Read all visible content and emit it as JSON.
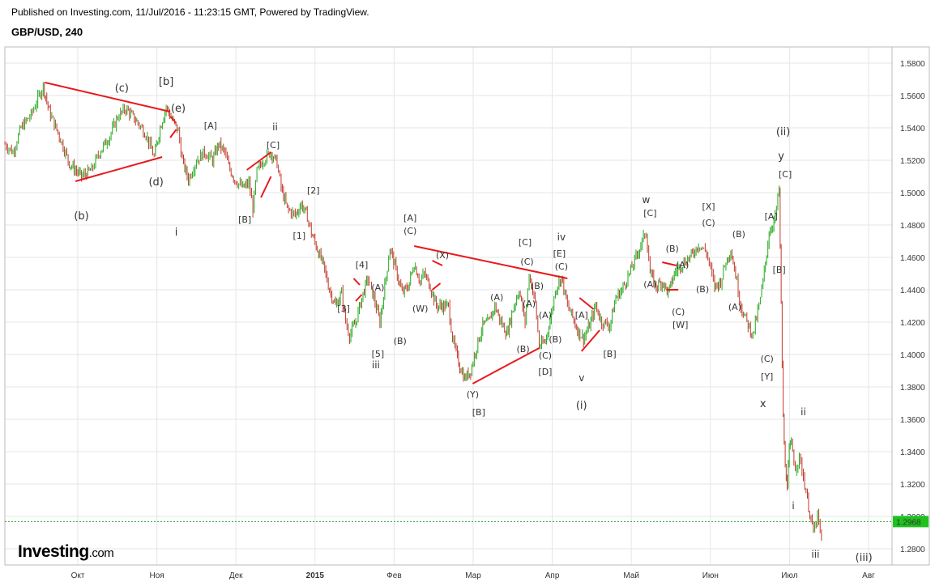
{
  "header": {
    "published": "Published on Investing.com, 11/Jul/2016 - 11:23:15 GMT, Powered by TradingView.",
    "symbol": "GBP/USD, 240"
  },
  "logo": {
    "main": "Investing",
    "suffix": ".com"
  },
  "colors": {
    "up": "#22a81c",
    "down": "#c0392b",
    "trendline": "#e8191c",
    "last_price_bg": "#1ec21e",
    "grid": "#e6e6e6"
  },
  "chart_data": {
    "type": "candlestick",
    "title": "GBP/USD, 240",
    "ylim": [
      1.27,
      1.59
    ],
    "y_ticks": [
      "1.5800",
      "1.5600",
      "1.5400",
      "1.5200",
      "1.5000",
      "1.4800",
      "1.4600",
      "1.4400",
      "1.4200",
      "1.4000",
      "1.3800",
      "1.3600",
      "1.3400",
      "1.3200",
      "1.3000",
      "1.2800"
    ],
    "x_ticks": [
      "Окт",
      "Ноя",
      "Дек",
      "2015",
      "Фев",
      "Мар",
      "Апр",
      "Май",
      "Июн",
      "Июл",
      "Авг"
    ],
    "last_price": "1.2968",
    "price_path": [
      [
        0,
        1.53
      ],
      [
        4,
        1.525
      ],
      [
        8,
        1.54
      ],
      [
        13,
        1.548
      ],
      [
        17,
        1.56
      ],
      [
        19,
        1.566
      ],
      [
        22,
        1.55
      ],
      [
        27,
        1.535
      ],
      [
        32,
        1.518
      ],
      [
        38,
        1.51
      ],
      [
        43,
        1.514
      ],
      [
        47,
        1.525
      ],
      [
        52,
        1.535
      ],
      [
        56,
        1.547
      ],
      [
        60,
        1.552
      ],
      [
        66,
        1.543
      ],
      [
        70,
        1.536
      ],
      [
        74,
        1.522
      ],
      [
        77,
        1.54
      ],
      [
        80,
        1.553
      ],
      [
        83,
        1.545
      ],
      [
        86,
        1.538
      ],
      [
        88,
        1.52
      ],
      [
        91,
        1.508
      ],
      [
        95,
        1.52
      ],
      [
        99,
        1.525
      ],
      [
        103,
        1.52
      ],
      [
        106,
        1.53
      ],
      [
        109,
        1.525
      ],
      [
        111,
        1.516
      ],
      [
        114,
        1.508
      ],
      [
        118,
        1.503
      ],
      [
        121,
        1.506
      ],
      [
        123,
        1.49
      ],
      [
        125,
        1.513
      ],
      [
        128,
        1.52
      ],
      [
        132,
        1.525
      ],
      [
        135,
        1.518
      ],
      [
        137,
        1.503
      ],
      [
        140,
        1.49
      ],
      [
        144,
        1.486
      ],
      [
        147,
        1.493
      ],
      [
        150,
        1.485
      ],
      [
        152,
        1.475
      ],
      [
        155,
        1.465
      ],
      [
        158,
        1.455
      ],
      [
        161,
        1.44
      ],
      [
        164,
        1.43
      ],
      [
        167,
        1.438
      ],
      [
        169,
        1.42
      ],
      [
        171,
        1.412
      ],
      [
        174,
        1.42
      ],
      [
        177,
        1.435
      ],
      [
        180,
        1.447
      ],
      [
        183,
        1.435
      ],
      [
        186,
        1.42
      ],
      [
        189,
        1.448
      ],
      [
        191,
        1.466
      ],
      [
        194,
        1.452
      ],
      [
        197,
        1.438
      ],
      [
        200,
        1.442
      ],
      [
        203,
        1.456
      ],
      [
        206,
        1.445
      ],
      [
        208,
        1.45
      ],
      [
        211,
        1.442
      ],
      [
        214,
        1.43
      ],
      [
        217,
        1.43
      ],
      [
        220,
        1.43
      ],
      [
        222,
        1.41
      ],
      [
        225,
        1.395
      ],
      [
        228,
        1.385
      ],
      [
        231,
        1.39
      ],
      [
        234,
        1.405
      ],
      [
        237,
        1.418
      ],
      [
        240,
        1.42
      ],
      [
        243,
        1.43
      ],
      [
        246,
        1.42
      ],
      [
        249,
        1.413
      ],
      [
        252,
        1.428
      ],
      [
        255,
        1.44
      ],
      [
        258,
        1.42
      ],
      [
        260,
        1.45
      ],
      [
        263,
        1.432
      ],
      [
        265,
        1.405
      ],
      [
        268,
        1.408
      ],
      [
        271,
        1.425
      ],
      [
        273,
        1.44
      ],
      [
        276,
        1.448
      ],
      [
        279,
        1.43
      ],
      [
        281,
        1.425
      ],
      [
        284,
        1.415
      ],
      [
        287,
        1.41
      ],
      [
        290,
        1.418
      ],
      [
        293,
        1.43
      ],
      [
        296,
        1.42
      ],
      [
        300,
        1.418
      ],
      [
        303,
        1.435
      ],
      [
        306,
        1.44
      ],
      [
        309,
        1.448
      ],
      [
        313,
        1.46
      ],
      [
        316,
        1.47
      ],
      [
        318,
        1.476
      ],
      [
        320,
        1.45
      ],
      [
        323,
        1.442
      ],
      [
        326,
        1.445
      ],
      [
        329,
        1.438
      ],
      [
        332,
        1.45
      ],
      [
        335,
        1.455
      ],
      [
        338,
        1.458
      ],
      [
        341,
        1.462
      ],
      [
        344,
        1.468
      ],
      [
        348,
        1.463
      ],
      [
        352,
        1.442
      ],
      [
        355,
        1.445
      ],
      [
        357,
        1.455
      ],
      [
        360,
        1.465
      ],
      [
        363,
        1.445
      ],
      [
        365,
        1.43
      ],
      [
        368,
        1.42
      ],
      [
        371,
        1.412
      ],
      [
        374,
        1.43
      ],
      [
        376,
        1.445
      ],
      [
        379,
        1.475
      ],
      [
        382,
        1.485
      ],
      [
        384,
        1.502
      ],
      [
        385,
        1.43
      ],
      [
        386,
        1.36
      ],
      [
        387,
        1.33
      ],
      [
        388,
        1.32
      ],
      [
        389,
        1.34
      ],
      [
        390,
        1.345
      ],
      [
        392,
        1.33
      ],
      [
        394,
        1.336
      ],
      [
        396,
        1.325
      ],
      [
        398,
        1.31
      ],
      [
        401,
        1.29
      ],
      [
        403,
        1.3
      ],
      [
        405,
        1.285
      ]
    ],
    "x_range": [
      0,
      440
    ],
    "trendlines": [
      [
        [
          20,
          1.568
        ],
        [
          82,
          1.55
        ]
      ],
      [
        [
          35,
          1.507
        ],
        [
          78,
          1.522
        ]
      ],
      [
        [
          82,
          1.547
        ],
        [
          85,
          1.543
        ]
      ],
      [
        [
          82,
          1.534
        ],
        [
          85,
          1.539
        ]
      ],
      [
        [
          120,
          1.514
        ],
        [
          132,
          1.525
        ]
      ],
      [
        [
          127,
          1.497
        ],
        [
          132,
          1.51
        ]
      ],
      [
        [
          173,
          1.447
        ],
        [
          176,
          1.443
        ]
      ],
      [
        [
          174,
          1.433
        ],
        [
          177,
          1.437
        ]
      ],
      [
        [
          203,
          1.467
        ],
        [
          279,
          1.447
        ]
      ],
      [
        [
          232,
          1.382
        ],
        [
          265,
          1.404
        ]
      ],
      [
        [
          212,
          1.458
        ],
        [
          217,
          1.455
        ]
      ],
      [
        [
          212,
          1.44
        ],
        [
          216,
          1.444
        ]
      ],
      [
        [
          285,
          1.435
        ],
        [
          292,
          1.428
        ]
      ],
      [
        [
          286,
          1.402
        ],
        [
          295,
          1.415
        ]
      ],
      [
        [
          326,
          1.457
        ],
        [
          333,
          1.455
        ]
      ],
      [
        [
          328,
          1.44
        ],
        [
          334,
          1.44
        ]
      ]
    ],
    "wave_labels": [
      {
        "t": "(c)",
        "x": 58,
        "y": 1.5625,
        "s": 13
      },
      {
        "t": "[b]",
        "x": 80,
        "y": 1.5665,
        "s": 13
      },
      {
        "t": "(e)",
        "x": 86,
        "y": 1.55,
        "s": 13
      },
      {
        "t": "(d)",
        "x": 75,
        "y": 1.5045,
        "s": 13
      },
      {
        "t": "(b)",
        "x": 38,
        "y": 1.4835,
        "s": 13
      },
      {
        "t": "i",
        "x": 85,
        "y": 1.4735,
        "s": 13
      },
      {
        "t": "[A]",
        "x": 102,
        "y": 1.5395,
        "s": 11
      },
      {
        "t": "ii",
        "x": 134,
        "y": 1.5385,
        "s": 12
      },
      {
        "t": "[C]",
        "x": 133,
        "y": 1.5275,
        "s": 11
      },
      {
        "t": "[B]",
        "x": 119,
        "y": 1.4815,
        "s": 11
      },
      {
        "t": "[2]",
        "x": 153,
        "y": 1.4995,
        "s": 11
      },
      {
        "t": "[1]",
        "x": 146,
        "y": 1.4715,
        "s": 11
      },
      {
        "t": "[4]",
        "x": 177,
        "y": 1.4535,
        "s": 11
      },
      {
        "t": "[3]",
        "x": 168,
        "y": 1.4265,
        "s": 11
      },
      {
        "t": "(A)",
        "x": 185,
        "y": 1.4395,
        "s": 11
      },
      {
        "t": "[5]",
        "x": 185,
        "y": 1.3985,
        "s": 11
      },
      {
        "t": "iii",
        "x": 184,
        "y": 1.3915,
        "s": 12
      },
      {
        "t": "(B)",
        "x": 196,
        "y": 1.4065,
        "s": 11
      },
      {
        "t": "[A]",
        "x": 201,
        "y": 1.4825,
        "s": 11
      },
      {
        "t": "(C)",
        "x": 201,
        "y": 1.4745,
        "s": 11
      },
      {
        "t": "(W)",
        "x": 206,
        "y": 1.4265,
        "s": 11
      },
      {
        "t": "(X)",
        "x": 217,
        "y": 1.4595,
        "s": 11
      },
      {
        "t": "(A)",
        "x": 244,
        "y": 1.4335,
        "s": 11
      },
      {
        "t": "[C]",
        "x": 258,
        "y": 1.4675,
        "s": 11
      },
      {
        "t": "(C)",
        "x": 259,
        "y": 1.4555,
        "s": 11
      },
      {
        "t": "(B)",
        "x": 264,
        "y": 1.4405,
        "s": 11
      },
      {
        "t": "(A)",
        "x": 260,
        "y": 1.4295,
        "s": 11
      },
      {
        "t": "(A)",
        "x": 268,
        "y": 1.4225,
        "s": 11
      },
      {
        "t": "iv",
        "x": 276,
        "y": 1.4705,
        "s": 12
      },
      {
        "t": "[E]",
        "x": 275,
        "y": 1.4605,
        "s": 11
      },
      {
        "t": "(C)",
        "x": 276,
        "y": 1.4525,
        "s": 11
      },
      {
        "t": "(B)",
        "x": 257,
        "y": 1.4015,
        "s": 11
      },
      {
        "t": "(B)",
        "x": 273,
        "y": 1.4075,
        "s": 11
      },
      {
        "t": "(C)",
        "x": 268,
        "y": 1.3975,
        "s": 11
      },
      {
        "t": "[D]",
        "x": 268,
        "y": 1.3875,
        "s": 11
      },
      {
        "t": "(Y)",
        "x": 232,
        "y": 1.3735,
        "s": 11
      },
      {
        "t": "[B]",
        "x": 235,
        "y": 1.3625,
        "s": 11
      },
      {
        "t": "v",
        "x": 286,
        "y": 1.3835,
        "s": 12
      },
      {
        "t": "(i)",
        "x": 286,
        "y": 1.3665,
        "s": 13
      },
      {
        "t": "[A]",
        "x": 286,
        "y": 1.4225,
        "s": 11
      },
      {
        "t": "[B]",
        "x": 300,
        "y": 1.3985,
        "s": 11
      },
      {
        "t": "w",
        "x": 318,
        "y": 1.4935,
        "s": 12
      },
      {
        "t": "[C]",
        "x": 320,
        "y": 1.4855,
        "s": 11
      },
      {
        "t": "(B)",
        "x": 331,
        "y": 1.4635,
        "s": 11
      },
      {
        "t": "(A)",
        "x": 336,
        "y": 1.4535,
        "s": 11
      },
      {
        "t": "(A)",
        "x": 320,
        "y": 1.4415,
        "s": 11
      },
      {
        "t": "(C)",
        "x": 334,
        "y": 1.4245,
        "s": 11
      },
      {
        "t": "[W]",
        "x": 335,
        "y": 1.4165,
        "s": 11
      },
      {
        "t": "(B)",
        "x": 346,
        "y": 1.4385,
        "s": 11
      },
      {
        "t": "[X]",
        "x": 349,
        "y": 1.4895,
        "s": 11
      },
      {
        "t": "(C)",
        "x": 349,
        "y": 1.4795,
        "s": 11
      },
      {
        "t": "(B)",
        "x": 364,
        "y": 1.4725,
        "s": 11
      },
      {
        "t": "(A)",
        "x": 362,
        "y": 1.4275,
        "s": 11
      },
      {
        "t": "[A]",
        "x": 380,
        "y": 1.4835,
        "s": 11
      },
      {
        "t": "[B]",
        "x": 384,
        "y": 1.4505,
        "s": 11
      },
      {
        "t": "(ii)",
        "x": 386,
        "y": 1.5355,
        "s": 13
      },
      {
        "t": "y",
        "x": 385,
        "y": 1.5205,
        "s": 13
      },
      {
        "t": "[C]",
        "x": 387,
        "y": 1.5095,
        "s": 11
      },
      {
        "t": "(C)",
        "x": 378,
        "y": 1.3955,
        "s": 11
      },
      {
        "t": "[Y]",
        "x": 378,
        "y": 1.3845,
        "s": 11
      },
      {
        "t": "x",
        "x": 376,
        "y": 1.3675,
        "s": 13
      },
      {
        "t": "ii",
        "x": 396,
        "y": 1.3625,
        "s": 12
      },
      {
        "t": "i",
        "x": 391,
        "y": 1.3045,
        "s": 12
      },
      {
        "t": "iii",
        "x": 402,
        "y": 1.2745,
        "s": 12
      },
      {
        "t": "(iii)",
        "x": 426,
        "y": 1.2725,
        "s": 13
      }
    ]
  }
}
